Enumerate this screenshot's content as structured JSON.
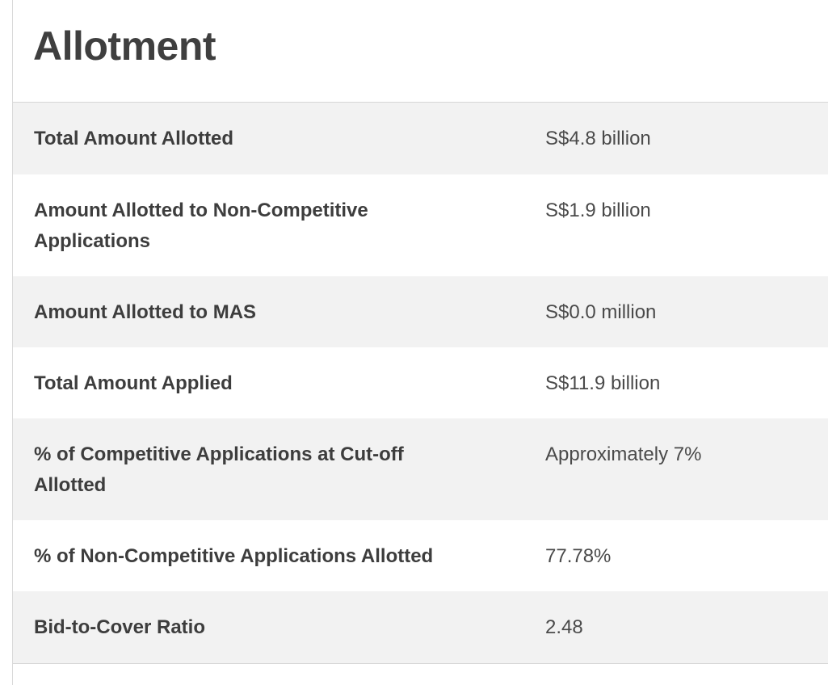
{
  "section": {
    "title": "Allotment"
  },
  "rows": [
    {
      "label": "Total Amount Allotted",
      "value": "S$4.8 billion"
    },
    {
      "label": "Amount Allotted to Non-Competitive Applications",
      "value": "S$1.9 billion"
    },
    {
      "label": "Amount Allotted to MAS",
      "value": "S$0.0 million"
    },
    {
      "label": "Total Amount Applied",
      "value": "S$11.9 billion"
    },
    {
      "label": "% of Competitive Applications at Cut-off Allotted",
      "value": "Approximately 7%"
    },
    {
      "label": "% of Non-Competitive Applications Allotted",
      "value": "77.78%"
    },
    {
      "label": "Bid-to-Cover Ratio",
      "value": "2.48"
    }
  ]
}
